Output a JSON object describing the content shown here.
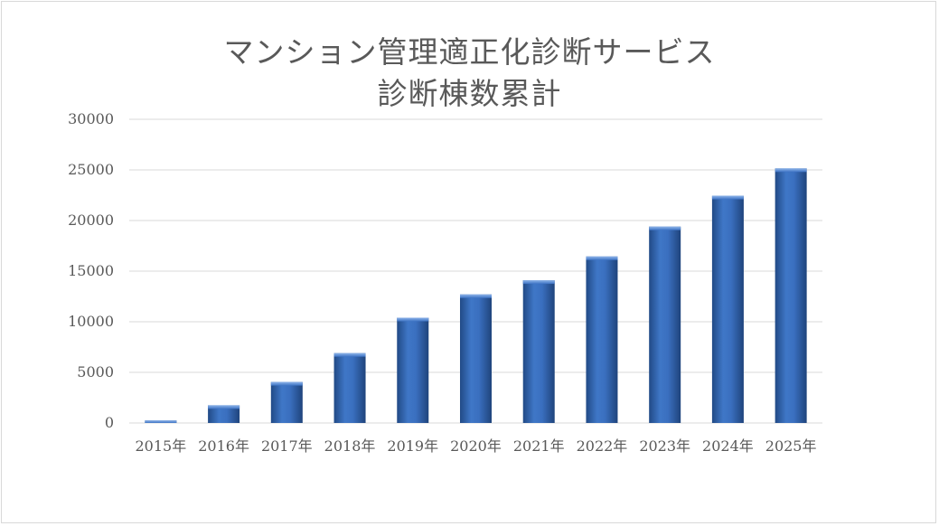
{
  "chart_data": {
    "type": "bar",
    "title_lines": [
      "マンション管理適正化診断サービス",
      "診断棟数累計"
    ],
    "categories": [
      "2015年",
      "2016年",
      "2017年",
      "2018年",
      "2019年",
      "2020年",
      "2021年",
      "2022年",
      "2023年",
      "2024年",
      "2025年"
    ],
    "values": [
      250,
      1750,
      4050,
      6900,
      10400,
      12700,
      14100,
      16450,
      19400,
      22450,
      25150
    ],
    "ylim": [
      0,
      30000
    ],
    "yticks": [
      "0",
      "5000",
      "10000",
      "15000",
      "20000",
      "25000",
      "30000"
    ],
    "xlabel": "",
    "ylabel": "",
    "grid": true,
    "legend": "none",
    "colors": {
      "bar_light": "#5b8fd6",
      "bar_mid": "#3a6fbf",
      "bar_dark": "#214a86",
      "grid": "#d9d9d9",
      "text": "#595959"
    }
  }
}
